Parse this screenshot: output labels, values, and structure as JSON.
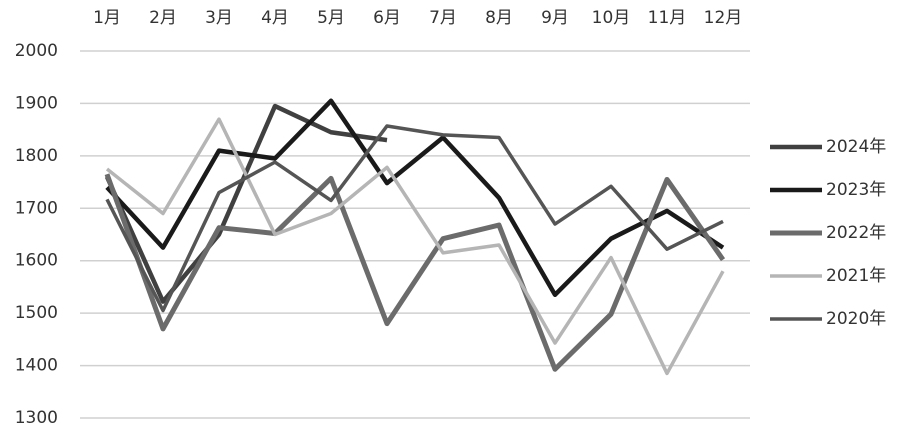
{
  "chart_data": {
    "type": "line",
    "categories": [
      "1月",
      "2月",
      "3月",
      "4月",
      "5月",
      "6月",
      "7月",
      "8月",
      "9月",
      "10月",
      "11月",
      "12月"
    ],
    "ylim": [
      1300,
      2000
    ],
    "yticks": [
      1300,
      1400,
      1500,
      1600,
      1700,
      1800,
      1900,
      2000
    ],
    "grid": true,
    "legend": "right",
    "series": [
      {
        "name": "2024年",
        "color": "#404040",
        "values": [
          1760,
          1522,
          1650,
          1895,
          1845,
          1830,
          null,
          null,
          null,
          null,
          null,
          null
        ]
      },
      {
        "name": "2023年",
        "color": "#1a1a1a",
        "values": [
          1740,
          1625,
          1810,
          1795,
          1905,
          1748,
          1835,
          1720,
          1535,
          1642,
          1695,
          1625
        ]
      },
      {
        "name": "2022年",
        "color": "#6b6b6b",
        "values": [
          1765,
          1470,
          1663,
          1652,
          1757,
          1480,
          1642,
          1668,
          1393,
          1498,
          1755,
          1602
        ]
      },
      {
        "name": "2021年",
        "color": "#b5b5b5",
        "values": [
          1775,
          1690,
          1870,
          1650,
          1690,
          1778,
          1615,
          1630,
          1443,
          1606,
          1385,
          1580
        ]
      },
      {
        "name": "2020年",
        "color": "#555555",
        "values": [
          1717,
          1505,
          1730,
          1788,
          1715,
          1857,
          1840,
          1835,
          1670,
          1742,
          1622,
          1675
        ]
      }
    ]
  }
}
